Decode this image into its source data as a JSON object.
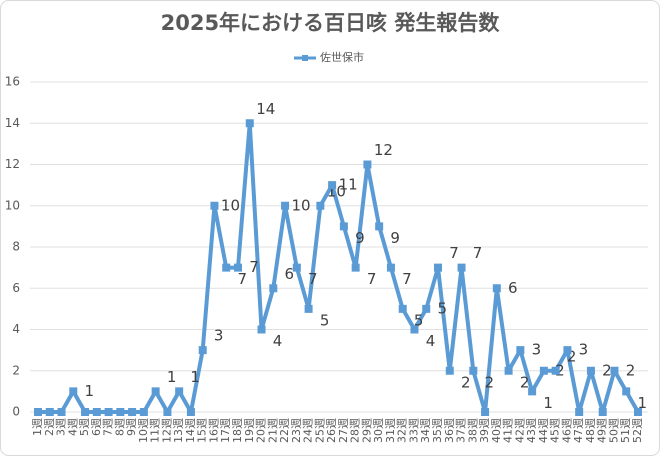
{
  "chart_data": {
    "type": "line",
    "title": "2025年における百日咳 発生報告数",
    "categories": [
      "1週",
      "2週",
      "3週",
      "4週",
      "5週",
      "6週",
      "7週",
      "8週",
      "9週",
      "10週",
      "11週",
      "12週",
      "13週",
      "14週",
      "15週",
      "16週",
      "17週",
      "18週",
      "19週",
      "20週",
      "21週",
      "22週",
      "23週",
      "24週",
      "25週",
      "26週",
      "27週",
      "28週",
      "29週",
      "30週",
      "31週",
      "32週",
      "33週",
      "34週",
      "35週",
      "36週",
      "37週",
      "38週",
      "39週",
      "40週",
      "41週",
      "42週",
      "43週",
      "44週",
      "45週",
      "46週",
      "47週",
      "48週",
      "49週",
      "50週",
      "51週",
      "52週"
    ],
    "series": [
      {
        "name": "佐世保市",
        "color": "#5b9bd5",
        "values": [
          0,
          0,
          0,
          1,
          0,
          0,
          0,
          0,
          0,
          0,
          1,
          0,
          1,
          0,
          3,
          10,
          7,
          7,
          14,
          4,
          6,
          10,
          7,
          5,
          10,
          11,
          9,
          7,
          12,
          9,
          7,
          5,
          4,
          5,
          7,
          2,
          7,
          2,
          0,
          6,
          2,
          3,
          1,
          2,
          2,
          3,
          0,
          2,
          0,
          2,
          1,
          0
        ]
      }
    ],
    "ylim": [
      0,
      16
    ],
    "yticks": [
      0,
      2,
      4,
      6,
      8,
      10,
      12,
      14,
      16
    ],
    "grid": true,
    "legend": "top"
  }
}
